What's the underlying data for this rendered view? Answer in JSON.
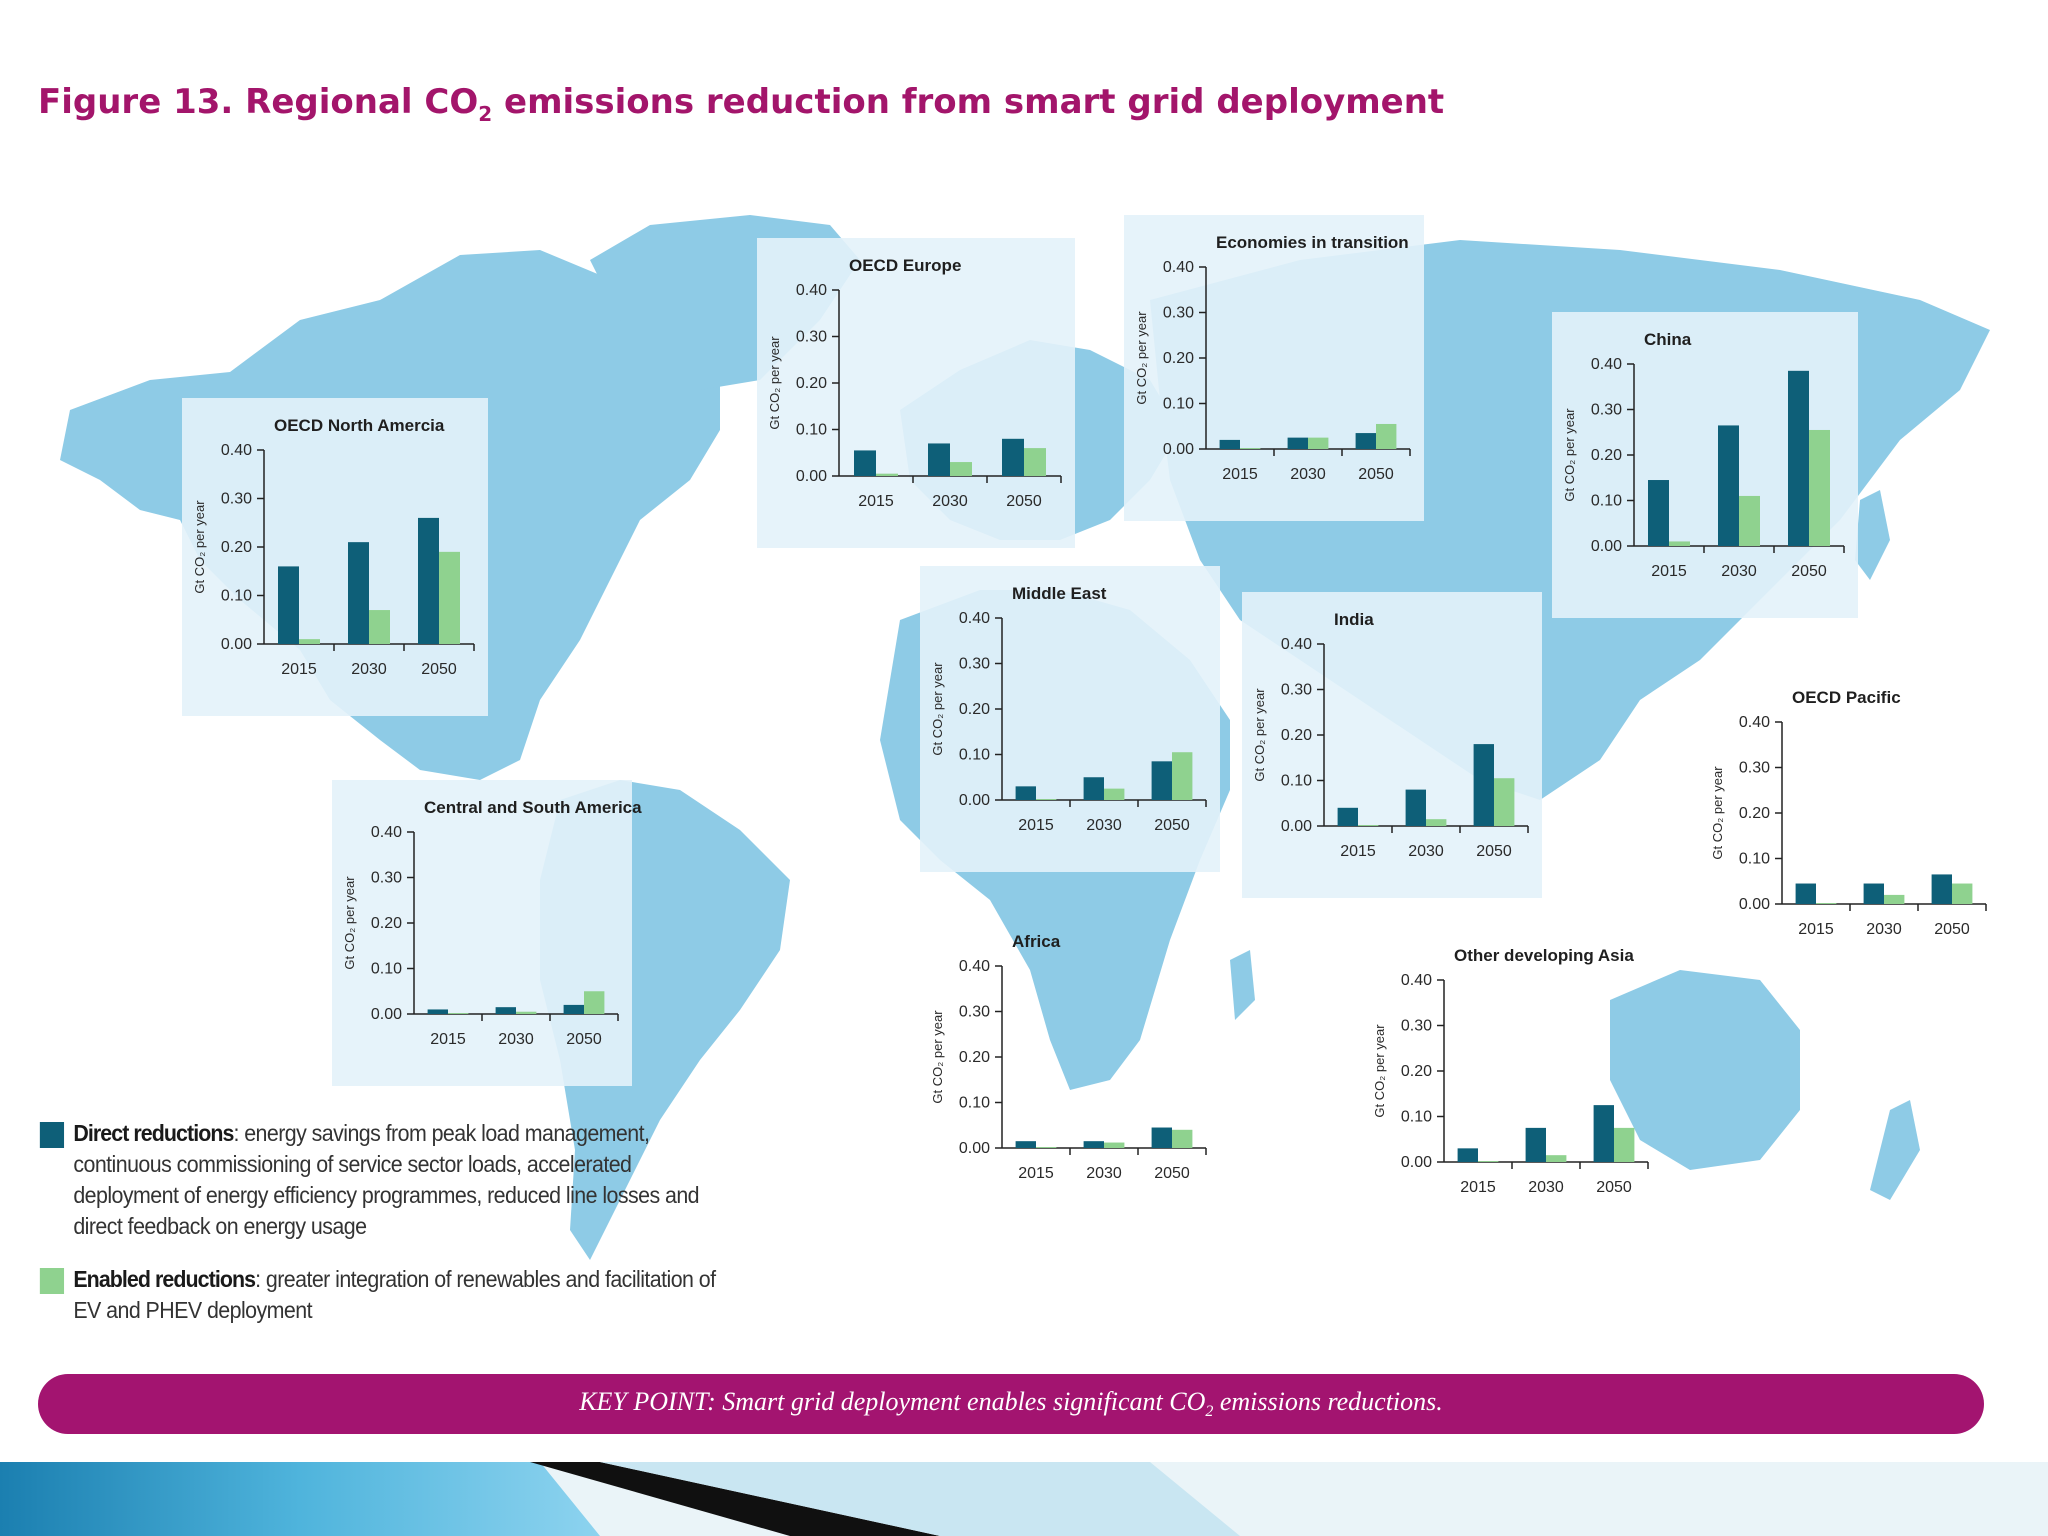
{
  "figure": {
    "title_main": "Figure 13. Regional CO",
    "title_sub": "2",
    "title_rest": " emissions reduction from smart grid deployment"
  },
  "legend": [
    {
      "name": "Direct reductions",
      "desc": ": energy savings from peak load management, continuous commissioning of service sector loads, accelerated deployment of energy efficiency programmes, reduced line losses and direct feedback on energy usage",
      "color": "#0e5f78"
    },
    {
      "name": "Enabled reductions",
      "desc": ": greater integration of renewables and facilitation of EV and PHEV deployment",
      "color": "#8fd28f"
    }
  ],
  "key_point": {
    "pre": "KEY POINT: Smart grid deployment enables significant CO",
    "sub": "2",
    "post": " emissions reductions."
  },
  "colors": {
    "direct": "#0e5f78",
    "enabled": "#8fd28f",
    "accent": "#a31470",
    "ocean": "#ffffff",
    "land": "#8ecbe6",
    "panel": "#e3f2fa"
  },
  "chart_data": [
    {
      "type": "bar",
      "title": "OECD North Amercia",
      "ylabel": "Gt CO₂ per year",
      "categories": [
        "2015",
        "2030",
        "2050"
      ],
      "yticks": [
        "0.00",
        "0.10",
        "0.20",
        "0.30",
        "0.40"
      ],
      "ylim": [
        0,
        0.4
      ],
      "series": [
        {
          "name": "Direct reductions",
          "values": [
            0.16,
            0.21,
            0.26
          ]
        },
        {
          "name": "Enabled reductions",
          "values": [
            0.01,
            0.07,
            0.19
          ]
        }
      ]
    },
    {
      "type": "bar",
      "title": "OECD Europe",
      "ylabel": "Gt CO₂ per year",
      "categories": [
        "2015",
        "2030",
        "2050"
      ],
      "yticks": [
        "0.00",
        "0.10",
        "0.20",
        "0.30",
        "0.40"
      ],
      "ylim": [
        0,
        0.4
      ],
      "series": [
        {
          "name": "Direct reductions",
          "values": [
            0.055,
            0.07,
            0.08
          ]
        },
        {
          "name": "Enabled reductions",
          "values": [
            0.005,
            0.03,
            0.06
          ]
        }
      ]
    },
    {
      "type": "bar",
      "title": "Economies in transition",
      "ylabel": "Gt CO₂ per year",
      "categories": [
        "2015",
        "2030",
        "2050"
      ],
      "yticks": [
        "0.00",
        "0.10",
        "0.20",
        "0.30",
        "0.40"
      ],
      "ylim": [
        0,
        0.4
      ],
      "series": [
        {
          "name": "Direct reductions",
          "values": [
            0.02,
            0.025,
            0.035
          ]
        },
        {
          "name": "Enabled reductions",
          "values": [
            0.002,
            0.025,
            0.055
          ]
        }
      ]
    },
    {
      "type": "bar",
      "title": "China",
      "ylabel": "Gt CO₂ per year",
      "categories": [
        "2015",
        "2030",
        "2050"
      ],
      "yticks": [
        "0.00",
        "0.10",
        "0.20",
        "0.30",
        "0.40"
      ],
      "ylim": [
        0,
        0.4
      ],
      "series": [
        {
          "name": "Direct reductions",
          "values": [
            0.145,
            0.265,
            0.385
          ]
        },
        {
          "name": "Enabled reductions",
          "values": [
            0.01,
            0.11,
            0.255
          ]
        }
      ]
    },
    {
      "type": "bar",
      "title": "Middle East",
      "ylabel": "Gt CO₂ per year",
      "categories": [
        "2015",
        "2030",
        "2050"
      ],
      "yticks": [
        "0.00",
        "0.10",
        "0.20",
        "0.30",
        "0.40"
      ],
      "ylim": [
        0,
        0.4
      ],
      "series": [
        {
          "name": "Direct reductions",
          "values": [
            0.03,
            0.05,
            0.085
          ]
        },
        {
          "name": "Enabled reductions",
          "values": [
            0.002,
            0.025,
            0.105
          ]
        }
      ]
    },
    {
      "type": "bar",
      "title": "India",
      "ylabel": "Gt CO₂ per year",
      "categories": [
        "2015",
        "2030",
        "2050"
      ],
      "yticks": [
        "0.00",
        "0.10",
        "0.20",
        "0.30",
        "0.40"
      ],
      "ylim": [
        0,
        0.4
      ],
      "series": [
        {
          "name": "Direct reductions",
          "values": [
            0.04,
            0.08,
            0.18
          ]
        },
        {
          "name": "Enabled reductions",
          "values": [
            0.002,
            0.015,
            0.105
          ]
        }
      ]
    },
    {
      "type": "bar",
      "title": "OECD Pacific",
      "ylabel": "Gt CO₂ per year",
      "categories": [
        "2015",
        "2030",
        "2050"
      ],
      "yticks": [
        "0.00",
        "0.10",
        "0.20",
        "0.30",
        "0.40"
      ],
      "ylim": [
        0,
        0.4
      ],
      "series": [
        {
          "name": "Direct reductions",
          "values": [
            0.045,
            0.045,
            0.065
          ]
        },
        {
          "name": "Enabled reductions",
          "values": [
            0.002,
            0.02,
            0.045
          ]
        }
      ]
    },
    {
      "type": "bar",
      "title": "Central and South America",
      "ylabel": "Gt CO₂ per year",
      "categories": [
        "2015",
        "2030",
        "2050"
      ],
      "yticks": [
        "0.00",
        "0.10",
        "0.20",
        "0.30",
        "0.40"
      ],
      "ylim": [
        0,
        0.4
      ],
      "series": [
        {
          "name": "Direct reductions",
          "values": [
            0.01,
            0.015,
            0.02
          ]
        },
        {
          "name": "Enabled reductions",
          "values": [
            0.002,
            0.005,
            0.05
          ]
        }
      ]
    },
    {
      "type": "bar",
      "title": "Africa",
      "ylabel": "Gt CO₂ per year",
      "categories": [
        "2015",
        "2030",
        "2050"
      ],
      "yticks": [
        "0.00",
        "0.10",
        "0.20",
        "0.30",
        "0.40"
      ],
      "ylim": [
        0,
        0.4
      ],
      "series": [
        {
          "name": "Direct reductions",
          "values": [
            0.015,
            0.015,
            0.045
          ]
        },
        {
          "name": "Enabled reductions",
          "values": [
            0.002,
            0.012,
            0.04
          ]
        }
      ]
    },
    {
      "type": "bar",
      "title": "Other developing Asia",
      "ylabel": "Gt CO₂ per year",
      "categories": [
        "2015",
        "2030",
        "2050"
      ],
      "yticks": [
        "0.00",
        "0.10",
        "0.20",
        "0.30",
        "0.40"
      ],
      "ylim": [
        0,
        0.4
      ],
      "series": [
        {
          "name": "Direct reductions",
          "values": [
            0.03,
            0.075,
            0.125
          ]
        },
        {
          "name": "Enabled reductions",
          "values": [
            0.002,
            0.015,
            0.075
          ]
        }
      ]
    }
  ]
}
